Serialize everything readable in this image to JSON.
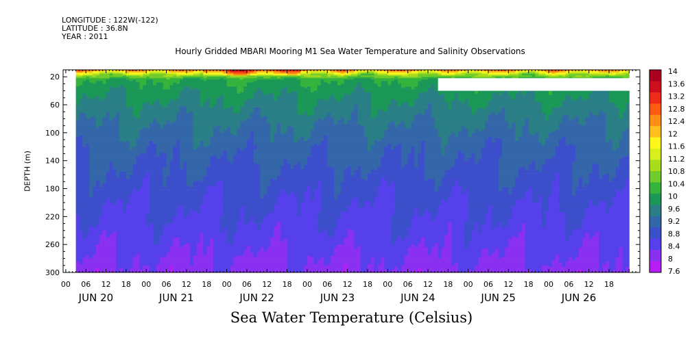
{
  "header": {
    "longitude": "LONGITUDE : 122W(-122)",
    "latitude": "LATITUDE : 36.8N",
    "year": "YEAR : 2011"
  },
  "chart_data": {
    "type": "heatmap",
    "title": "Hourly Gridded MBARI Mooring M1 Sea Water Temperature and Salinity Observations",
    "xlabel": "",
    "ylabel": "DEPTH (m)",
    "colorbar_label": "Sea Water Temperature (Celsius)",
    "y_axis": {
      "ylim": [
        300,
        10
      ],
      "inverted": true,
      "tick_labels": [
        "20",
        "60",
        "100",
        "140",
        "180",
        "220",
        "260",
        "300"
      ],
      "tick_values": [
        20,
        60,
        100,
        140,
        180,
        220,
        260,
        300
      ]
    },
    "x_axis": {
      "hour_labels": [
        "00",
        "06",
        "12",
        "18",
        "00",
        "06",
        "12",
        "18",
        "00",
        "06",
        "12",
        "18",
        "00",
        "06",
        "12",
        "18",
        "00",
        "06",
        "12",
        "18",
        "00",
        "06",
        "12",
        "18",
        "00",
        "06",
        "12",
        "18"
      ],
      "day_labels": [
        "JUN 20",
        "JUN 21",
        "JUN 22",
        "JUN 23",
        "JUN 24",
        "JUN 25",
        "JUN 26"
      ],
      "data_start_hour": 3,
      "data_end_hour": 168
    },
    "missing_data": [
      {
        "depth_range": [
          22,
          40
        ],
        "hour_range": [
          111,
          168
        ]
      }
    ],
    "colorbar": {
      "ticks": [
        "14",
        "13.6",
        "13.2",
        "12.8",
        "12.4",
        "12",
        "11.6",
        "11.2",
        "10.8",
        "10.4",
        "10",
        "9.6",
        "9.2",
        "8.8",
        "8.4",
        "8",
        "7.6"
      ],
      "colors": [
        "#a8001e",
        "#cc0e1e",
        "#ee2a18",
        "#ff5a14",
        "#ff8e14",
        "#ffbf1c",
        "#fff61c",
        "#d7f01c",
        "#a8dc1c",
        "#6fcc2c",
        "#35b33c",
        "#1b9858",
        "#2a7f86",
        "#3467a9",
        "#3c4fcb",
        "#5540ec",
        "#8a30f0",
        "#b71ef5"
      ]
    },
    "profile": [
      {
        "depth": 10,
        "temp": 12.6
      },
      {
        "depth": 16,
        "temp": 11.1
      },
      {
        "depth": 24,
        "temp": 10.0
      },
      {
        "depth": 40,
        "temp": 9.75
      },
      {
        "depth": 60,
        "temp": 9.5
      },
      {
        "depth": 90,
        "temp": 9.2
      },
      {
        "depth": 120,
        "temp": 8.95
      },
      {
        "depth": 160,
        "temp": 8.7
      },
      {
        "depth": 200,
        "temp": 8.45
      },
      {
        "depth": 240,
        "temp": 8.25
      },
      {
        "depth": 270,
        "temp": 8.05
      },
      {
        "depth": 300,
        "temp": 7.85
      }
    ]
  }
}
